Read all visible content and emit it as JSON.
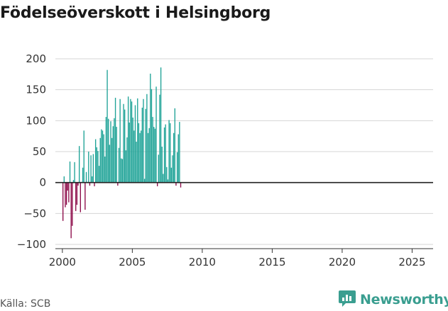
{
  "title": "Födelseöverskott i Helsingborg",
  "source": "Källa: SCB",
  "brand": {
    "name": "Newsworthy",
    "icon": "newsworthy-logo-icon"
  },
  "colors": {
    "positive": "#1fa397",
    "negative": "#8c0a48",
    "grid": "#d4d4d4",
    "zero": "#222222",
    "brand": "#3a9e90"
  },
  "chart_data": {
    "type": "bar",
    "title": "Födelseöverskott i Helsingborg",
    "xlabel": "",
    "ylabel": "",
    "ylim": [
      -100,
      200
    ],
    "xlim": [
      1999.5,
      2026.5
    ],
    "yticks": [
      200,
      150,
      100,
      50,
      0,
      -50,
      -100
    ],
    "ytick_labels": [
      "200",
      "150",
      "100",
      "50",
      "0",
      "−50",
      "−100"
    ],
    "xticks": [
      2000,
      2005,
      2010,
      2015,
      2020,
      2025
    ],
    "xtick_labels": [
      "2000",
      "2005",
      "2010",
      "2015",
      "2020",
      "2025"
    ],
    "grid": true,
    "frequency": "monthly",
    "start": "2000-01",
    "values": [
      -62,
      10,
      -40,
      -36,
      -13,
      -32,
      34,
      -90,
      -70,
      4,
      33,
      -46,
      -36,
      -5,
      59,
      -48,
      1,
      24,
      84,
      -44,
      17,
      1,
      50,
      -5,
      44,
      10,
      46,
      -6,
      70,
      57,
      51,
      27,
      72,
      86,
      84,
      78,
      42,
      106,
      182,
      103,
      61,
      99,
      72,
      91,
      104,
      137,
      90,
      -5,
      56,
      135,
      39,
      38,
      127,
      118,
      52,
      73,
      139,
      97,
      135,
      131,
      105,
      84,
      125,
      66,
      136,
      96,
      80,
      84,
      121,
      135,
      6,
      119,
      143,
      80,
      88,
      176,
      151,
      106,
      90,
      87,
      155,
      -6,
      45,
      142,
      186,
      58,
      14,
      89,
      94,
      25,
      5,
      101,
      96,
      24,
      44,
      80,
      120,
      -5,
      49,
      78,
      98,
      -8
    ]
  }
}
